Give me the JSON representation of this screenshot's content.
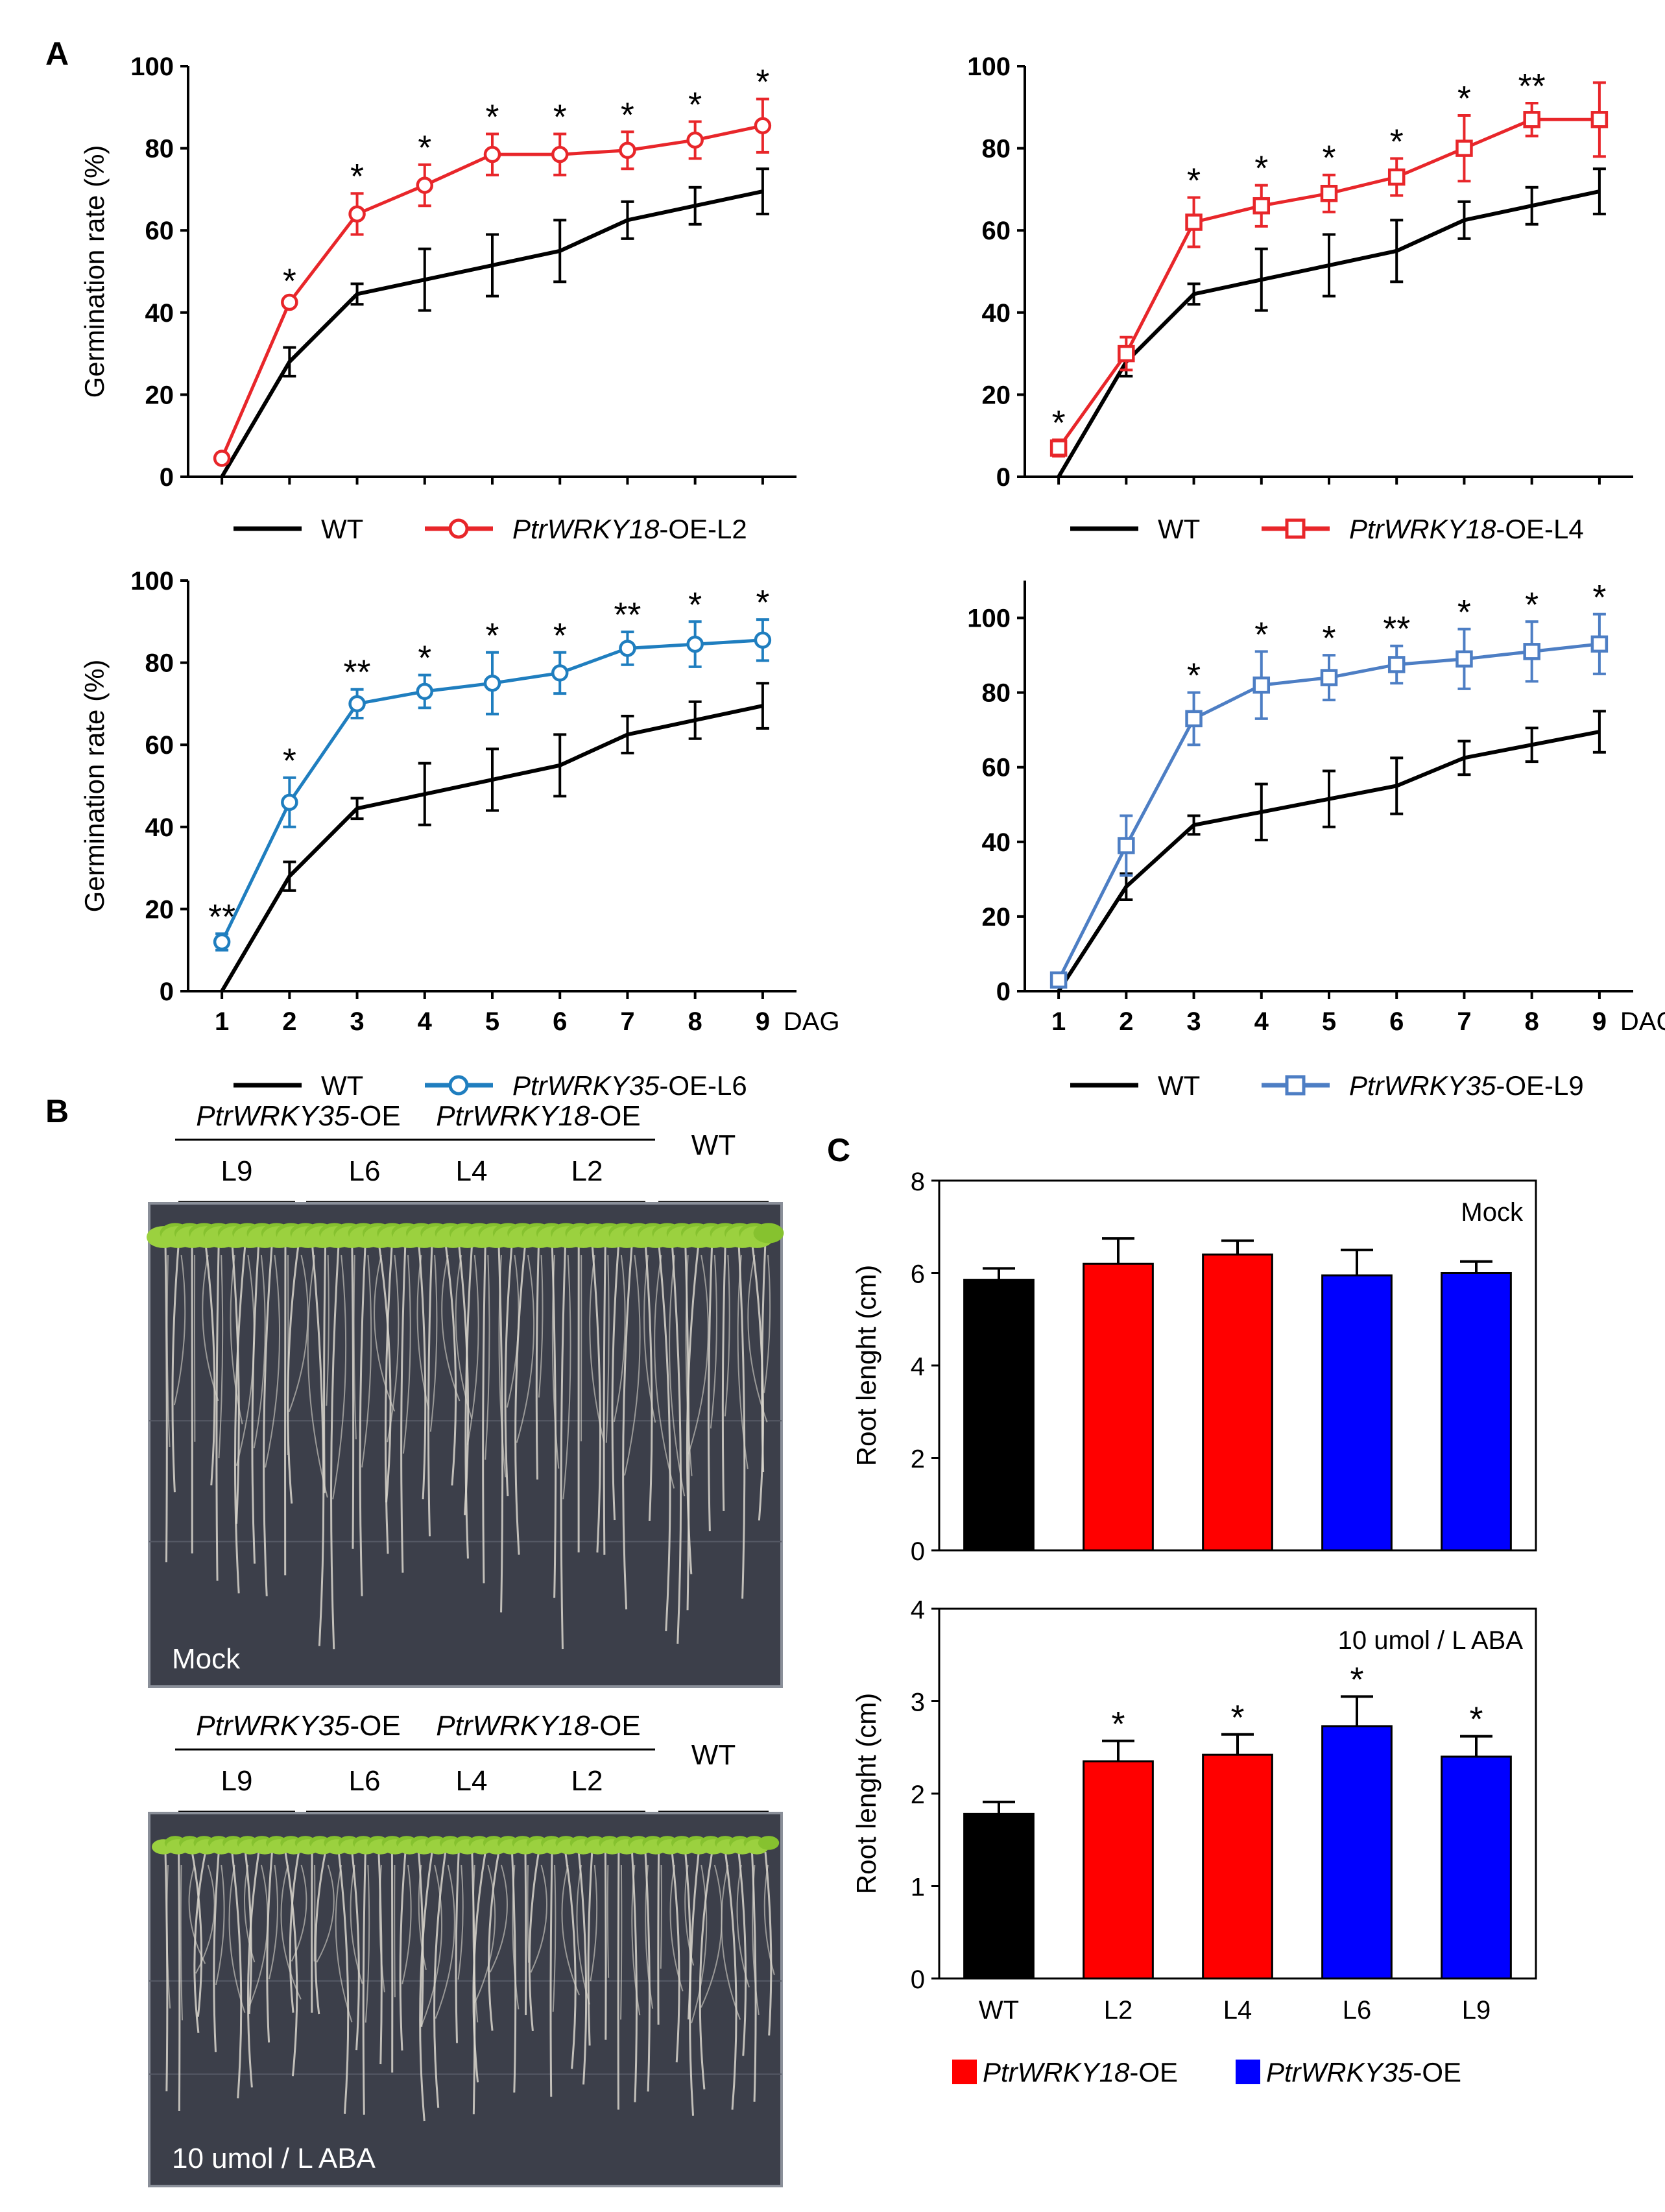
{
  "panel_labels": {
    "a": "A",
    "b": "B",
    "c": "C"
  },
  "colors": {
    "wt": "#000000",
    "l2": "#e8262a",
    "l4": "#e8262a",
    "l6": "#1f7ebf",
    "l9": "#4d7ec4",
    "bar_wt": "#000000",
    "bar_18": "#ff0000",
    "bar_35": "#0000ff",
    "plate": "#3c3f4a",
    "leaf": "#9bd13f",
    "root": "#d9d6cc"
  },
  "chart_data": [
    {
      "id": "germination-L2",
      "type": "line",
      "ylabel": "Germination rate (%)",
      "ylim": [
        0,
        100
      ],
      "yticks": [
        "0",
        "20",
        "40",
        "60",
        "80",
        "100"
      ],
      "x": [
        1,
        2,
        3,
        4,
        5,
        6,
        7,
        8,
        9
      ],
      "xtick_labels": [],
      "x_unit": "",
      "legend": {
        "wt": "WT",
        "gene": "PtrWRKY18",
        "suffix": "-OE-L2"
      },
      "series": [
        {
          "name": "WT",
          "values": [
            0,
            28,
            44.5,
            48,
            51.5,
            55,
            62.5,
            66,
            69.5
          ],
          "errors": [
            0,
            3.5,
            2.5,
            7.5,
            7.5,
            7.5,
            4.5,
            4.5,
            5.5
          ]
        },
        {
          "name": "PtrWRKY18-OE-L2",
          "marker": "circle",
          "values": [
            4.5,
            42.5,
            64,
            71,
            78.5,
            78.5,
            79.5,
            82,
            85.5
          ],
          "errors": [
            1,
            1,
            5,
            5,
            5,
            5,
            4.5,
            4.5,
            6.5
          ]
        }
      ],
      "significance": [
        "",
        "*",
        "*",
        "*",
        "*",
        "*",
        "*",
        "*",
        "*"
      ]
    },
    {
      "id": "germination-L4",
      "type": "line",
      "ylabel": "",
      "ylim": [
        0,
        100
      ],
      "yticks": [
        "0",
        "20",
        "40",
        "60",
        "80",
        "100"
      ],
      "x": [
        1,
        2,
        3,
        4,
        5,
        6,
        7,
        8,
        9
      ],
      "xtick_labels": [],
      "x_unit": "",
      "legend": {
        "wt": "WT",
        "gene": "PtrWRKY18",
        "suffix": "-OE-L4"
      },
      "series": [
        {
          "name": "WT",
          "values": [
            0,
            28,
            44.5,
            48,
            51.5,
            55,
            62.5,
            66,
            69.5
          ],
          "errors": [
            0,
            3.5,
            2.5,
            7.5,
            7.5,
            7.5,
            4.5,
            4.5,
            5.5
          ]
        },
        {
          "name": "PtrWRKY18-OE-L4",
          "marker": "square",
          "values": [
            7,
            30,
            62,
            66,
            69,
            73,
            80,
            87,
            87
          ],
          "errors": [
            2,
            4,
            6,
            5,
            4.5,
            4.5,
            8,
            4,
            9
          ]
        }
      ],
      "significance": [
        "*",
        "",
        "*",
        "*",
        "*",
        "*",
        "*",
        "**",
        ""
      ]
    },
    {
      "id": "germination-L6",
      "type": "line",
      "ylabel": "Germination rate (%)",
      "ylim": [
        0,
        100
      ],
      "yticks": [
        "0",
        "20",
        "40",
        "60",
        "80",
        "100"
      ],
      "x": [
        1,
        2,
        3,
        4,
        5,
        6,
        7,
        8,
        9
      ],
      "xtick_labels": [
        "1",
        "2",
        "3",
        "4",
        "5",
        "6",
        "7",
        "8",
        "9"
      ],
      "x_unit": "DAG",
      "legend": {
        "wt": "WT",
        "gene": "PtrWRKY35",
        "suffix": "-OE-L6"
      },
      "series": [
        {
          "name": "WT",
          "values": [
            0,
            28,
            44.5,
            48,
            51.5,
            55,
            62.5,
            66,
            69.5
          ],
          "errors": [
            0,
            3.5,
            2.5,
            7.5,
            7.5,
            7.5,
            4.5,
            4.5,
            5.5
          ]
        },
        {
          "name": "PtrWRKY35-OE-L6",
          "marker": "circle",
          "values": [
            12,
            46,
            70,
            73,
            75,
            77.5,
            83.5,
            84.5,
            85.5
          ],
          "errors": [
            2,
            6,
            3.5,
            4,
            7.5,
            5,
            4,
            5.5,
            5
          ]
        }
      ],
      "significance": [
        "**",
        "*",
        "**",
        "*",
        "*",
        "*",
        "**",
        "*",
        "*"
      ]
    },
    {
      "id": "germination-L9",
      "type": "line",
      "ylabel": "",
      "ylim": [
        0,
        110
      ],
      "yticks": [
        "0",
        "20",
        "40",
        "60",
        "80",
        "100"
      ],
      "x": [
        1,
        2,
        3,
        4,
        5,
        6,
        7,
        8,
        9
      ],
      "xtick_labels": [
        "1",
        "2",
        "3",
        "4",
        "5",
        "6",
        "7",
        "8",
        "9"
      ],
      "x_unit": "DAG",
      "legend": {
        "wt": "WT",
        "gene": "PtrWRKY35",
        "suffix": "-OE-L9"
      },
      "series": [
        {
          "name": "WT",
          "values": [
            0,
            28,
            44.5,
            48,
            51.5,
            55,
            62.5,
            66,
            69.5
          ],
          "errors": [
            0,
            3.5,
            2.5,
            7.5,
            7.5,
            7.5,
            4.5,
            4.5,
            5.5
          ]
        },
        {
          "name": "PtrWRKY35-OE-L9",
          "marker": "square",
          "values": [
            3,
            39,
            73,
            82,
            84,
            87.5,
            89,
            91,
            93
          ],
          "errors": [
            1,
            8,
            7,
            9,
            6,
            5,
            8,
            8,
            8
          ]
        }
      ],
      "significance": [
        "",
        "",
        "*",
        "*",
        "*",
        "**",
        "*",
        "*",
        "*"
      ]
    },
    {
      "id": "root-mock",
      "type": "bar",
      "ylabel": "Root lenght (cm)",
      "ylim": [
        0,
        8
      ],
      "yticks": [
        "0",
        "2",
        "4",
        "6",
        "8"
      ],
      "annotation": "Mock",
      "categories": [
        "WT",
        "L2",
        "L4",
        "L6",
        "L9"
      ],
      "values": [
        5.85,
        6.2,
        6.4,
        5.95,
        6.0
      ],
      "errors": [
        0.25,
        0.55,
        0.3,
        0.55,
        0.25
      ],
      "significance": [
        "",
        "",
        "",
        "",
        ""
      ],
      "xtick_labels": []
    },
    {
      "id": "root-aba",
      "type": "bar",
      "ylabel": "Root lenght (cm)",
      "ylim": [
        0,
        4
      ],
      "yticks": [
        "0",
        "1",
        "2",
        "3",
        "4"
      ],
      "annotation": "10 umol / L ABA",
      "categories": [
        "WT",
        "L2",
        "L4",
        "L6",
        "L9"
      ],
      "values": [
        1.78,
        2.35,
        2.42,
        2.73,
        2.4
      ],
      "errors": [
        0.13,
        0.22,
        0.22,
        0.32,
        0.22
      ],
      "significance": [
        "",
        "*",
        "*",
        "*",
        "*"
      ],
      "xtick_labels": [
        "WT",
        "L2",
        "L4",
        "L6",
        "L9"
      ]
    }
  ],
  "bar_legend": {
    "gene18": "PtrWRKY18",
    "gene35": "PtrWRKY35",
    "suffix": "-OE"
  },
  "photos": {
    "mock": {
      "gene35": "PtrWRKY35",
      "gene18": "PtrWRKY18",
      "suffix": "-OE",
      "lines": [
        "L9",
        "L6",
        "L4",
        "L2"
      ],
      "wt": "WT",
      "corner": "Mock"
    },
    "aba": {
      "gene35": "PtrWRKY35",
      "gene18": "PtrWRKY18",
      "suffix": "-OE",
      "lines": [
        "L9",
        "L6",
        "L4",
        "L2"
      ],
      "wt": "WT",
      "corner": "10 umol / L ABA"
    }
  }
}
